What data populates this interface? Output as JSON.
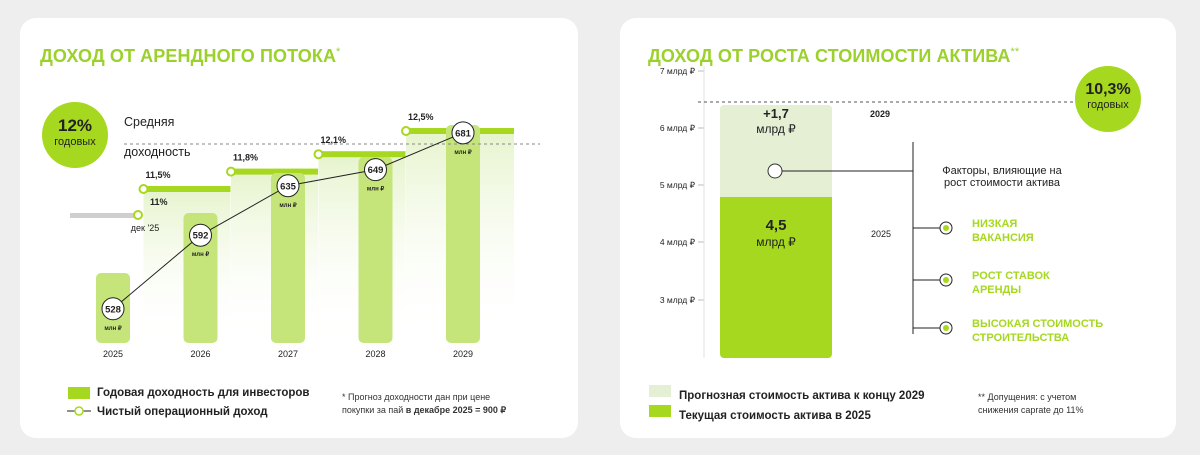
{
  "left": {
    "title": "ДОХОД ОТ АРЕНДНОГО ПОТОКА",
    "title_mark": "*",
    "badge_value": "12%",
    "badge_unit": "годовых",
    "avg_label_1": "Средняя",
    "avg_label_2": "доходность",
    "legend_bars": "Годовая доходность для инвесторов",
    "legend_line": "Чистый операционный доход",
    "footnote_1": "* Прогноз доходности дан при цене",
    "footnote_2a": "покупки за пай ",
    "footnote_2b": "в декабре 2025 = 900 ₽"
  },
  "right": {
    "title": "ДОХОД ОТ РОСТА СТОИМОСТИ АКТИВА",
    "title_mark": "**",
    "badge_value": "10,3%",
    "badge_unit": "годовых",
    "year_2029": "2029",
    "year_2025": "2025",
    "growth_value": "+1,7",
    "growth_unit": "млрд ₽",
    "current_value": "4,5",
    "current_unit": "млрд ₽",
    "factors_title": "Факторы, влияющие на рост стоимости актива",
    "factors": [
      "НИЗКАЯ ВАКАНСИЯ",
      "РОСТ СТАВОК АРЕНДЫ",
      "ВЫСОКАЯ СТОИМОСТЬ СТРОИТЕЛЬСТВА"
    ],
    "legend_forecast": "Прогнозная стоимость актива к концу 2029",
    "legend_current": "Текущая стоимость актива в 2025",
    "footnote_1": "** Допущения: с учетом",
    "footnote_2": "снижения caprate до 11%"
  },
  "chart_data": [
    {
      "type": "bar",
      "title": "ДОХОД ОТ АРЕНДНОГО ПОТОКА",
      "categories": [
        "2025",
        "2026",
        "2027",
        "2028",
        "2029"
      ],
      "series": [
        {
          "name": "Годовая доходность для инвесторов",
          "values": [
            "11%",
            "11,5%",
            "11,8%",
            "12,1%",
            "12,5%"
          ]
        },
        {
          "name": "Чистый операционный доход",
          "values": [
            528,
            592,
            635,
            649,
            681
          ],
          "unit": "млн ₽"
        }
      ],
      "yield_start_label": "дек '25",
      "average_yield": "12%"
    },
    {
      "type": "bar",
      "title": "ДОХОД ОТ РОСТА СТОИМОСТИ АКТИВА",
      "y_ticks": [
        "3 млрд ₽",
        "4 млрд ₽",
        "5 млрд ₽",
        "6 млрд ₽",
        "7 млрд ₽"
      ],
      "ylim": [
        2,
        7
      ],
      "stack": [
        {
          "name": "Текущая стоимость актива в 2025",
          "value": 4.5
        },
        {
          "name": "Прогнозная стоимость актива к концу 2029",
          "value": 1.7
        }
      ]
    }
  ],
  "colors": {
    "accent": "#a6d820",
    "bar": "#c5e57a",
    "bar_light": "#e4efd4",
    "grey": "#cfcfcf"
  }
}
